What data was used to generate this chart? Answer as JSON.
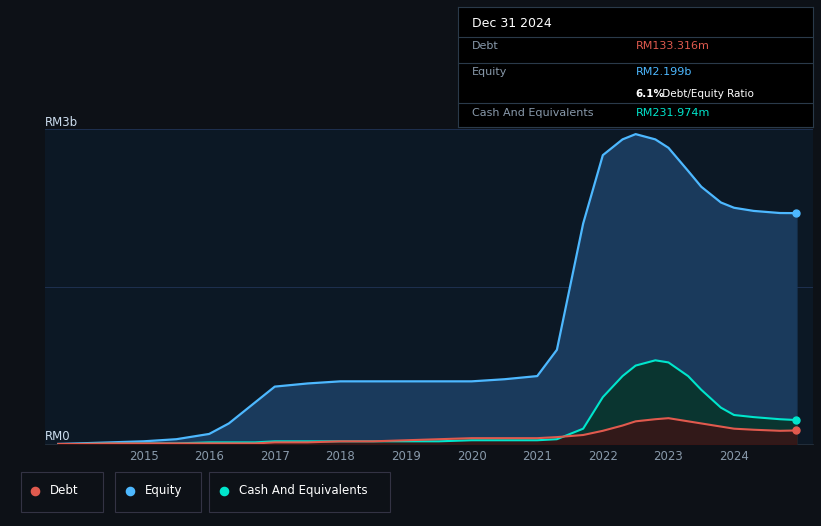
{
  "bg_color": "#0d1117",
  "plot_bg_color": "#0c1825",
  "title_box": {
    "date": "Dec 31 2024",
    "debt_label": "Debt",
    "debt_value": "RM133.316m",
    "debt_color": "#e05a4e",
    "equity_label": "Equity",
    "equity_value": "RM2.199b",
    "equity_color": "#4db8ff",
    "ratio_bold": "6.1%",
    "ratio_rest": " Debt/Equity Ratio",
    "cash_label": "Cash And Equivalents",
    "cash_value": "RM231.974m",
    "cash_color": "#00e5cc"
  },
  "ylabel_top": "RM3b",
  "ylabel_bottom": "RM0",
  "x_ticks": [
    2015,
    2016,
    2017,
    2018,
    2019,
    2020,
    2021,
    2022,
    2023,
    2024
  ],
  "grid_color": "#1e3050",
  "equity_color": "#4db8ff",
  "equity_fill": "#1a3a5c",
  "debt_color": "#e05a4e",
  "debt_fill": "#3a1515",
  "cash_color": "#00e5cc",
  "cash_fill": "#0a3530",
  "years": [
    2013.7,
    2014.0,
    2014.5,
    2015.0,
    2015.5,
    2016.0,
    2016.3,
    2016.7,
    2017.0,
    2017.5,
    2018.0,
    2018.5,
    2019.0,
    2019.5,
    2020.0,
    2020.5,
    2021.0,
    2021.3,
    2021.7,
    2022.0,
    2022.3,
    2022.5,
    2022.8,
    2023.0,
    2023.3,
    2023.5,
    2023.8,
    2024.0,
    2024.3,
    2024.7,
    2024.95
  ],
  "equity": [
    0.005,
    0.01,
    0.02,
    0.03,
    0.05,
    0.1,
    0.2,
    0.4,
    0.55,
    0.58,
    0.6,
    0.6,
    0.6,
    0.6,
    0.6,
    0.62,
    0.65,
    0.9,
    2.1,
    2.75,
    2.9,
    2.95,
    2.9,
    2.82,
    2.6,
    2.45,
    2.3,
    2.25,
    2.22,
    2.2,
    2.199
  ],
  "debt": [
    0.005,
    0.005,
    0.01,
    0.01,
    0.01,
    0.01,
    0.01,
    0.01,
    0.02,
    0.02,
    0.03,
    0.03,
    0.04,
    0.05,
    0.06,
    0.06,
    0.06,
    0.07,
    0.09,
    0.13,
    0.18,
    0.22,
    0.24,
    0.25,
    0.22,
    0.2,
    0.17,
    0.15,
    0.14,
    0.13,
    0.133
  ],
  "cash": [
    0.003,
    0.005,
    0.01,
    0.01,
    0.01,
    0.02,
    0.02,
    0.02,
    0.03,
    0.03,
    0.03,
    0.03,
    0.03,
    0.03,
    0.04,
    0.04,
    0.04,
    0.05,
    0.15,
    0.45,
    0.65,
    0.75,
    0.8,
    0.78,
    0.65,
    0.52,
    0.35,
    0.28,
    0.26,
    0.24,
    0.232
  ],
  "ymax": 3.0,
  "xmin": 2013.5,
  "xmax": 2025.2,
  "legend_items": [
    {
      "label": "Debt",
      "color": "#e05a4e"
    },
    {
      "label": "Equity",
      "color": "#4db8ff"
    },
    {
      "label": "Cash And Equivalents",
      "color": "#00e5cc"
    }
  ]
}
